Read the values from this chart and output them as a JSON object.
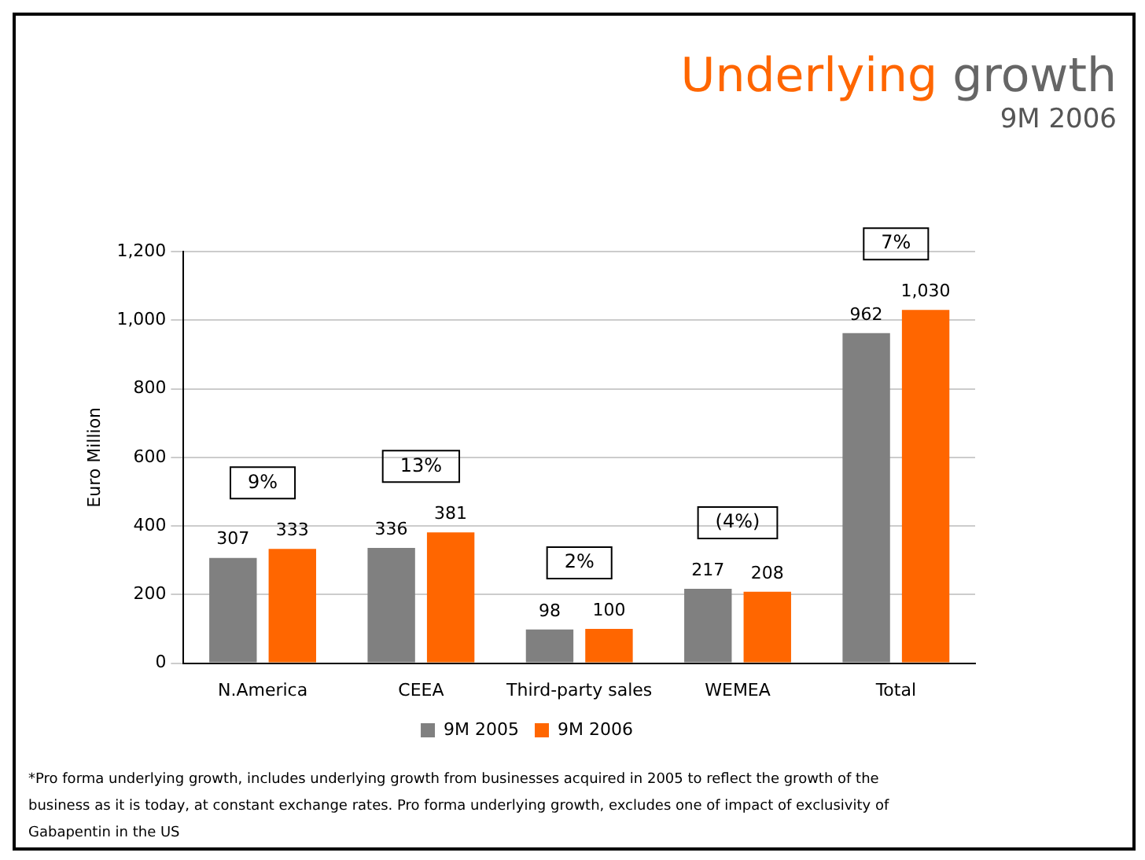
{
  "chart_data": {
    "type": "bar",
    "title": "Underlying growth",
    "subtitle": "9M 2006",
    "ylabel": "Euro Million",
    "categories": [
      "N.America",
      "CEEA",
      "Third-party sales",
      "WEMEA",
      "Total"
    ],
    "series": [
      {
        "name": "9M 2005",
        "color": "#808080",
        "values": [
          307,
          336,
          98,
          217,
          962
        ],
        "value_labels": [
          "307",
          "336",
          "98",
          "217",
          "962"
        ]
      },
      {
        "name": "9M 2006",
        "color": "#ff6600",
        "values": [
          333,
          381,
          100,
          208,
          1030
        ],
        "value_labels": [
          "333",
          "381",
          "100",
          "208",
          "1,030"
        ]
      }
    ],
    "ylim": [
      0,
      1200
    ],
    "yticks": [
      0,
      200,
      400,
      600,
      800,
      {
        "value": 1000,
        "label": "1,000"
      },
      {
        "value": 1200,
        "label": "1,200"
      }
    ],
    "grid": "y",
    "legend": "bottom",
    "annotations": [
      "9%",
      "13%",
      "2%",
      "(4%)",
      "7%",
      "*Pro forma underlying growth, includes underlying growth from businesses acquired in 2005 to reflect the growth of the business as it is today, at constant exchange rates. Pro forma underlying growth, excludes one of impact of exclusivity of Gabapentin in the US"
    ]
  }
}
